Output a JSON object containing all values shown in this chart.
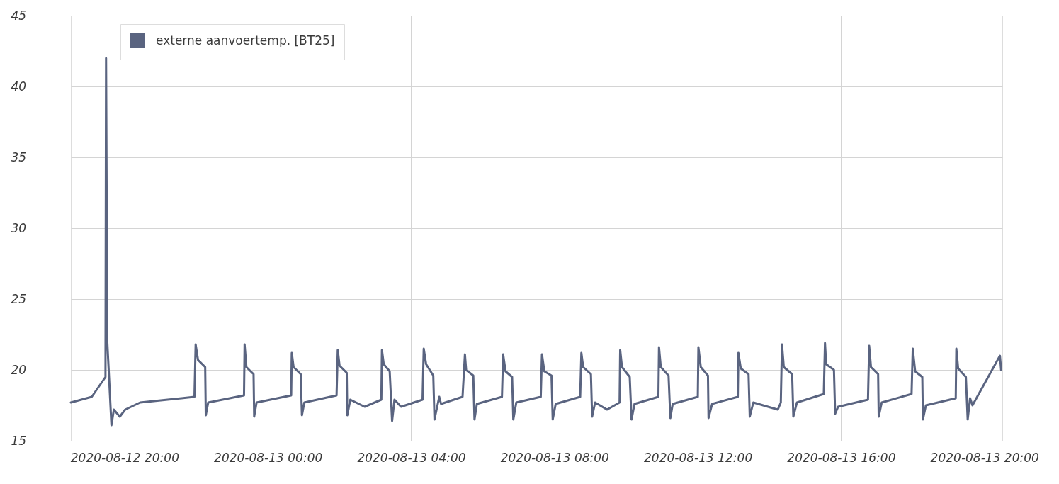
{
  "chart_data": {
    "type": "line",
    "x": [
      "2020-08-12T18:30",
      "2020-08-12T19:05",
      "2020-08-12T19:28",
      "2020-08-12T19:29",
      "2020-08-12T19:31",
      "2020-08-12T19:38",
      "2020-08-12T19:42",
      "2020-08-12T19:52",
      "2020-08-12T20:01",
      "2020-08-12T20:26",
      "2020-08-12T21:57",
      "2020-08-12T21:59",
      "2020-08-12T22:03",
      "2020-08-12T22:15",
      "2020-08-12T22:16",
      "2020-08-12T22:20",
      "2020-08-12T23:20",
      "2020-08-12T23:21",
      "2020-08-12T23:24",
      "2020-08-12T23:36",
      "2020-08-12T23:37",
      "2020-08-12T23:41",
      "2020-08-13T00:39",
      "2020-08-13T00:40",
      "2020-08-13T00:43",
      "2020-08-13T00:55",
      "2020-08-13T00:57",
      "2020-08-13T01:01",
      "2020-08-13T01:55",
      "2020-08-13T01:57",
      "2020-08-13T02:00",
      "2020-08-13T02:12",
      "2020-08-13T02:13",
      "2020-08-13T02:18",
      "2020-08-13T02:42",
      "2020-08-13T03:10",
      "2020-08-13T03:11",
      "2020-08-13T03:14",
      "2020-08-13T03:24",
      "2020-08-13T03:28",
      "2020-08-13T03:32",
      "2020-08-13T03:43",
      "2020-08-13T04:19",
      "2020-08-13T04:21",
      "2020-08-13T04:25",
      "2020-08-13T04:37",
      "2020-08-13T04:39",
      "2020-08-13T04:47",
      "2020-08-13T04:50",
      "2020-08-13T05:26",
      "2020-08-13T05:30",
      "2020-08-13T05:32",
      "2020-08-13T05:44",
      "2020-08-13T05:46",
      "2020-08-13T05:50",
      "2020-08-13T06:32",
      "2020-08-13T06:34",
      "2020-08-13T06:38",
      "2020-08-13T06:49",
      "2020-08-13T06:51",
      "2020-08-13T06:56",
      "2020-08-13T07:37",
      "2020-08-13T07:39",
      "2020-08-13T07:43",
      "2020-08-13T07:55",
      "2020-08-13T07:57",
      "2020-08-13T08:02",
      "2020-08-13T08:43",
      "2020-08-13T08:45",
      "2020-08-13T08:48",
      "2020-08-13T09:01",
      "2020-08-13T09:03",
      "2020-08-13T09:08",
      "2020-08-13T09:28",
      "2020-08-13T09:49",
      "2020-08-13T09:50",
      "2020-08-13T09:53",
      "2020-08-13T10:06",
      "2020-08-13T10:09",
      "2020-08-13T10:14",
      "2020-08-13T10:54",
      "2020-08-13T10:55",
      "2020-08-13T10:58",
      "2020-08-13T11:11",
      "2020-08-13T11:14",
      "2020-08-13T11:18",
      "2020-08-13T12:00",
      "2020-08-13T12:01",
      "2020-08-13T12:05",
      "2020-08-13T12:17",
      "2020-08-13T12:18",
      "2020-08-13T12:24",
      "2020-08-13T13:07",
      "2020-08-13T13:08",
      "2020-08-13T13:12",
      "2020-08-13T13:25",
      "2020-08-13T13:27",
      "2020-08-13T13:33",
      "2020-08-13T14:14",
      "2020-08-13T14:19",
      "2020-08-13T14:21",
      "2020-08-13T14:24",
      "2020-08-13T14:38",
      "2020-08-13T14:40",
      "2020-08-13T14:46",
      "2020-08-13T15:31",
      "2020-08-13T15:33",
      "2020-08-13T15:35",
      "2020-08-13T15:48",
      "2020-08-13T15:50",
      "2020-08-13T15:55",
      "2020-08-13T16:45",
      "2020-08-13T16:47",
      "2020-08-13T16:50",
      "2020-08-13T17:02",
      "2020-08-13T17:03",
      "2020-08-13T17:08",
      "2020-08-13T17:58",
      "2020-08-13T18:00",
      "2020-08-13T18:04",
      "2020-08-13T18:16",
      "2020-08-13T18:17",
      "2020-08-13T18:22",
      "2020-08-13T19:12",
      "2020-08-13T19:13",
      "2020-08-13T19:16",
      "2020-08-13T19:29",
      "2020-08-13T19:32",
      "2020-08-13T19:36",
      "2020-08-13T19:40",
      "2020-08-13T20:26",
      "2020-08-13T20:28"
    ],
    "series": [
      {
        "name": "externe aanvoertemp. [BT25]",
        "color": "#5a6480",
        "values": [
          17.7,
          18.1,
          19.5,
          42,
          22.0,
          16.1,
          17.2,
          16.7,
          17.2,
          17.7,
          18.1,
          21.8,
          20.7,
          20.2,
          16.8,
          17.7,
          18.2,
          21.8,
          20.2,
          19.7,
          16.7,
          17.7,
          18.2,
          21.2,
          20.2,
          19.7,
          16.8,
          17.7,
          18.2,
          21.4,
          20.3,
          19.8,
          16.8,
          17.9,
          17.4,
          17.9,
          21.4,
          20.4,
          19.9,
          16.4,
          17.9,
          17.4,
          17.9,
          21.5,
          20.4,
          19.6,
          16.5,
          18.1,
          17.6,
          18.1,
          21.1,
          20.0,
          19.6,
          16.5,
          17.6,
          18.1,
          21.1,
          19.9,
          19.5,
          16.5,
          17.7,
          18.1,
          21.1,
          19.9,
          19.6,
          16.5,
          17.6,
          18.1,
          21.2,
          20.2,
          19.7,
          16.7,
          17.7,
          17.2,
          17.7,
          21.4,
          20.2,
          19.5,
          16.5,
          17.6,
          18.1,
          21.6,
          20.2,
          19.6,
          16.6,
          17.6,
          18.1,
          21.6,
          20.2,
          19.6,
          16.6,
          17.6,
          18.1,
          21.2,
          20.1,
          19.7,
          16.7,
          17.7,
          17.2,
          17.7,
          21.8,
          20.2,
          19.7,
          16.7,
          17.7,
          18.3,
          21.9,
          20.4,
          20.0,
          16.9,
          17.4,
          17.9,
          21.7,
          20.2,
          19.7,
          16.7,
          17.7,
          18.3,
          21.5,
          19.9,
          19.5,
          16.5,
          17.5,
          18.0,
          21.5,
          20.1,
          19.5,
          16.5,
          18.0,
          17.5,
          21.0,
          20.0
        ]
      }
    ],
    "xlim": [
      "2020-08-12T18:30",
      "2020-08-13T20:30"
    ],
    "xticks": [
      {
        "value": "2020-08-12T20:00",
        "label": "2020-08-12 20:00"
      },
      {
        "value": "2020-08-13T00:00",
        "label": "2020-08-13 00:00"
      },
      {
        "value": "2020-08-13T04:00",
        "label": "2020-08-13 04:00"
      },
      {
        "value": "2020-08-13T08:00",
        "label": "2020-08-13 08:00"
      },
      {
        "value": "2020-08-13T12:00",
        "label": "2020-08-13 12:00"
      },
      {
        "value": "2020-08-13T16:00",
        "label": "2020-08-13 16:00"
      },
      {
        "value": "2020-08-13T20:00",
        "label": "2020-08-13 20:00"
      }
    ],
    "ylim": [
      15,
      45
    ],
    "yticks": [
      15,
      20,
      25,
      30,
      35,
      40,
      45
    ],
    "grid": true,
    "legend": "top left"
  }
}
